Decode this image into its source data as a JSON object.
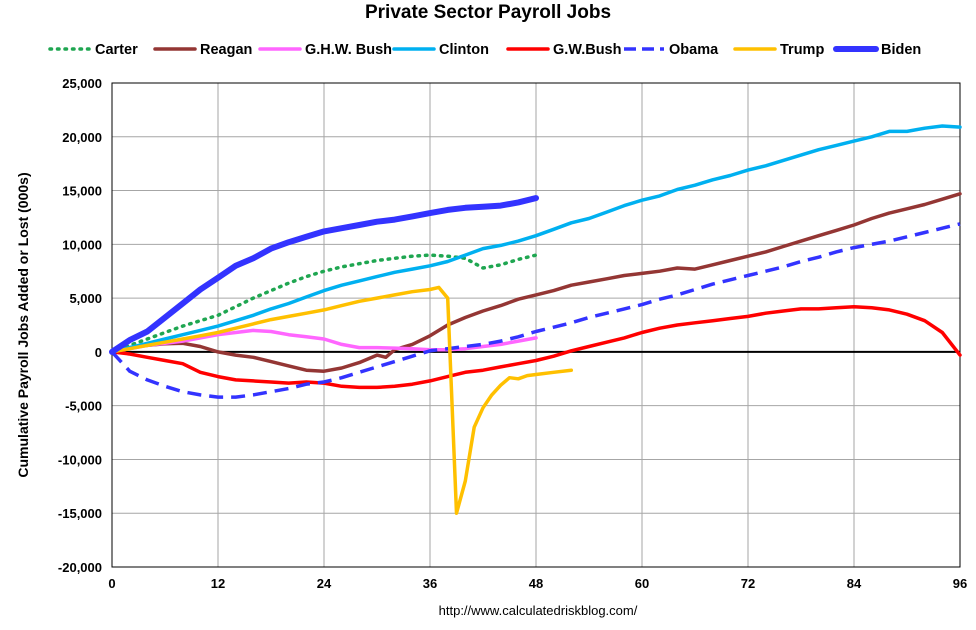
{
  "chart_data": {
    "type": "line",
    "title": "Private Sector Payroll Jobs",
    "xlabel": "",
    "ylabel": "Cumulative Payroll Jobs Added or  Lost (000s)",
    "source": "http://www.calculatedriskblog.com/",
    "xlim": [
      0,
      96
    ],
    "ylim": [
      -20000,
      25000
    ],
    "x_ticks": [
      0,
      12,
      24,
      36,
      48,
      60,
      72,
      84,
      96
    ],
    "y_ticks": [
      -20000,
      -15000,
      -10000,
      -5000,
      0,
      5000,
      10000,
      15000,
      20000,
      25000
    ],
    "y_tick_labels": [
      "-20,000",
      "-15,000",
      "-10,000",
      "-5,000",
      "0",
      "5,000",
      "10,000",
      "15,000",
      "20,000",
      "25,000"
    ],
    "grid": true,
    "legend_position": "top",
    "series": [
      {
        "name": "Carter",
        "color": "#1fa651",
        "style": "dotted",
        "points": [
          [
            0,
            0
          ],
          [
            2,
            600
          ],
          [
            4,
            1200
          ],
          [
            6,
            1800
          ],
          [
            8,
            2400
          ],
          [
            10,
            2900
          ],
          [
            12,
            3400
          ],
          [
            14,
            4200
          ],
          [
            16,
            5000
          ],
          [
            18,
            5700
          ],
          [
            20,
            6400
          ],
          [
            22,
            7000
          ],
          [
            24,
            7500
          ],
          [
            26,
            7900
          ],
          [
            28,
            8200
          ],
          [
            30,
            8500
          ],
          [
            32,
            8700
          ],
          [
            34,
            8900
          ],
          [
            36,
            9000
          ],
          [
            38,
            8900
          ],
          [
            40,
            8700
          ],
          [
            42,
            7800
          ],
          [
            44,
            8100
          ],
          [
            46,
            8600
          ],
          [
            48,
            9000
          ]
        ]
      },
      {
        "name": "Reagan",
        "color": "#943634",
        "style": "solid",
        "points": [
          [
            0,
            0
          ],
          [
            2,
            400
          ],
          [
            4,
            600
          ],
          [
            6,
            750
          ],
          [
            8,
            800
          ],
          [
            10,
            500
          ],
          [
            12,
            0
          ],
          [
            14,
            -300
          ],
          [
            16,
            -500
          ],
          [
            18,
            -900
          ],
          [
            20,
            -1300
          ],
          [
            22,
            -1700
          ],
          [
            24,
            -1800
          ],
          [
            26,
            -1500
          ],
          [
            28,
            -1000
          ],
          [
            30,
            -300
          ],
          [
            31,
            -500
          ],
          [
            32,
            200
          ],
          [
            34,
            700
          ],
          [
            36,
            1500
          ],
          [
            38,
            2500
          ],
          [
            40,
            3200
          ],
          [
            42,
            3800
          ],
          [
            44,
            4300
          ],
          [
            46,
            4900
          ],
          [
            48,
            5300
          ],
          [
            50,
            5700
          ],
          [
            52,
            6200
          ],
          [
            54,
            6500
          ],
          [
            56,
            6800
          ],
          [
            58,
            7100
          ],
          [
            60,
            7300
          ],
          [
            62,
            7500
          ],
          [
            64,
            7800
          ],
          [
            66,
            7700
          ],
          [
            68,
            8100
          ],
          [
            70,
            8500
          ],
          [
            72,
            8900
          ],
          [
            74,
            9300
          ],
          [
            76,
            9800
          ],
          [
            78,
            10300
          ],
          [
            80,
            10800
          ],
          [
            82,
            11300
          ],
          [
            84,
            11800
          ],
          [
            86,
            12400
          ],
          [
            88,
            12900
          ],
          [
            90,
            13300
          ],
          [
            92,
            13700
          ],
          [
            94,
            14200
          ],
          [
            96,
            14700
          ]
        ]
      },
      {
        "name": "G.H.W. Bush",
        "color": "#ff66ff",
        "style": "solid",
        "points": [
          [
            0,
            0
          ],
          [
            2,
            300
          ],
          [
            4,
            600
          ],
          [
            6,
            800
          ],
          [
            8,
            1000
          ],
          [
            10,
            1300
          ],
          [
            12,
            1600
          ],
          [
            14,
            1800
          ],
          [
            16,
            2000
          ],
          [
            18,
            1900
          ],
          [
            20,
            1600
          ],
          [
            22,
            1400
          ],
          [
            24,
            1200
          ],
          [
            26,
            700
          ],
          [
            28,
            400
          ],
          [
            30,
            400
          ],
          [
            32,
            350
          ],
          [
            34,
            300
          ],
          [
            36,
            200
          ],
          [
            38,
            200
          ],
          [
            40,
            300
          ],
          [
            42,
            500
          ],
          [
            44,
            700
          ],
          [
            46,
            1000
          ],
          [
            48,
            1300
          ]
        ]
      },
      {
        "name": "Clinton",
        "color": "#00b0f0",
        "style": "solid",
        "points": [
          [
            0,
            0
          ],
          [
            2,
            400
          ],
          [
            4,
            800
          ],
          [
            6,
            1200
          ],
          [
            8,
            1600
          ],
          [
            10,
            2000
          ],
          [
            12,
            2400
          ],
          [
            14,
            2900
          ],
          [
            16,
            3400
          ],
          [
            18,
            4000
          ],
          [
            20,
            4500
          ],
          [
            22,
            5100
          ],
          [
            24,
            5700
          ],
          [
            26,
            6200
          ],
          [
            28,
            6600
          ],
          [
            30,
            7000
          ],
          [
            32,
            7400
          ],
          [
            34,
            7700
          ],
          [
            36,
            8000
          ],
          [
            38,
            8400
          ],
          [
            40,
            9000
          ],
          [
            42,
            9600
          ],
          [
            44,
            9900
          ],
          [
            46,
            10300
          ],
          [
            48,
            10800
          ],
          [
            50,
            11400
          ],
          [
            52,
            12000
          ],
          [
            54,
            12400
          ],
          [
            56,
            13000
          ],
          [
            58,
            13600
          ],
          [
            60,
            14100
          ],
          [
            62,
            14500
          ],
          [
            64,
            15100
          ],
          [
            66,
            15500
          ],
          [
            68,
            16000
          ],
          [
            70,
            16400
          ],
          [
            72,
            16900
          ],
          [
            74,
            17300
          ],
          [
            76,
            17800
          ],
          [
            78,
            18300
          ],
          [
            80,
            18800
          ],
          [
            82,
            19200
          ],
          [
            84,
            19600
          ],
          [
            86,
            20000
          ],
          [
            88,
            20500
          ],
          [
            90,
            20500
          ],
          [
            92,
            20800
          ],
          [
            94,
            21000
          ],
          [
            96,
            20900
          ]
        ]
      },
      {
        "name": "G.W.Bush",
        "color": "#ff0000",
        "style": "solid",
        "points": [
          [
            0,
            0
          ],
          [
            2,
            -200
          ],
          [
            4,
            -500
          ],
          [
            6,
            -800
          ],
          [
            8,
            -1100
          ],
          [
            10,
            -1900
          ],
          [
            12,
            -2300
          ],
          [
            14,
            -2600
          ],
          [
            16,
            -2700
          ],
          [
            18,
            -2800
          ],
          [
            20,
            -2900
          ],
          [
            22,
            -2800
          ],
          [
            24,
            -2900
          ],
          [
            26,
            -3200
          ],
          [
            28,
            -3300
          ],
          [
            30,
            -3300
          ],
          [
            32,
            -3200
          ],
          [
            34,
            -3000
          ],
          [
            36,
            -2700
          ],
          [
            38,
            -2300
          ],
          [
            40,
            -1900
          ],
          [
            42,
            -1700
          ],
          [
            44,
            -1400
          ],
          [
            46,
            -1100
          ],
          [
            48,
            -800
          ],
          [
            50,
            -400
          ],
          [
            52,
            100
          ],
          [
            54,
            500
          ],
          [
            56,
            900
          ],
          [
            58,
            1300
          ],
          [
            60,
            1800
          ],
          [
            62,
            2200
          ],
          [
            64,
            2500
          ],
          [
            66,
            2700
          ],
          [
            68,
            2900
          ],
          [
            70,
            3100
          ],
          [
            72,
            3300
          ],
          [
            74,
            3600
          ],
          [
            76,
            3800
          ],
          [
            78,
            4000
          ],
          [
            80,
            4000
          ],
          [
            82,
            4100
          ],
          [
            84,
            4200
          ],
          [
            86,
            4100
          ],
          [
            88,
            3900
          ],
          [
            90,
            3500
          ],
          [
            92,
            2900
          ],
          [
            94,
            1800
          ],
          [
            96,
            -300
          ]
        ]
      },
      {
        "name": "Obama",
        "color": "#3333ff",
        "style": "dashed",
        "points": [
          [
            0,
            0
          ],
          [
            2,
            -1800
          ],
          [
            4,
            -2600
          ],
          [
            6,
            -3200
          ],
          [
            8,
            -3700
          ],
          [
            10,
            -4000
          ],
          [
            12,
            -4200
          ],
          [
            14,
            -4200
          ],
          [
            16,
            -4000
          ],
          [
            18,
            -3700
          ],
          [
            20,
            -3400
          ],
          [
            22,
            -3000
          ],
          [
            24,
            -2800
          ],
          [
            26,
            -2400
          ],
          [
            28,
            -1900
          ],
          [
            30,
            -1400
          ],
          [
            32,
            -900
          ],
          [
            34,
            -400
          ],
          [
            36,
            100
          ],
          [
            38,
            300
          ],
          [
            40,
            500
          ],
          [
            42,
            700
          ],
          [
            44,
            1000
          ],
          [
            46,
            1400
          ],
          [
            48,
            1900
          ],
          [
            50,
            2300
          ],
          [
            52,
            2700
          ],
          [
            54,
            3200
          ],
          [
            56,
            3600
          ],
          [
            58,
            4000
          ],
          [
            60,
            4400
          ],
          [
            62,
            4900
          ],
          [
            64,
            5300
          ],
          [
            66,
            5800
          ],
          [
            68,
            6300
          ],
          [
            70,
            6700
          ],
          [
            72,
            7100
          ],
          [
            74,
            7500
          ],
          [
            76,
            7900
          ],
          [
            78,
            8400
          ],
          [
            80,
            8800
          ],
          [
            82,
            9300
          ],
          [
            84,
            9700
          ],
          [
            86,
            10000
          ],
          [
            88,
            10300
          ],
          [
            90,
            10700
          ],
          [
            92,
            11100
          ],
          [
            94,
            11500
          ],
          [
            96,
            11900
          ]
        ]
      },
      {
        "name": "Trump",
        "color": "#ffc000",
        "style": "solid",
        "points": [
          [
            0,
            0
          ],
          [
            2,
            300
          ],
          [
            4,
            600
          ],
          [
            6,
            900
          ],
          [
            8,
            1200
          ],
          [
            10,
            1500
          ],
          [
            12,
            1800
          ],
          [
            14,
            2200
          ],
          [
            16,
            2600
          ],
          [
            18,
            3000
          ],
          [
            20,
            3300
          ],
          [
            22,
            3600
          ],
          [
            24,
            3900
          ],
          [
            26,
            4300
          ],
          [
            28,
            4700
          ],
          [
            30,
            5000
          ],
          [
            32,
            5300
          ],
          [
            34,
            5600
          ],
          [
            36,
            5800
          ],
          [
            37,
            6000
          ],
          [
            38,
            5000
          ],
          [
            39,
            -15000
          ],
          [
            40,
            -12000
          ],
          [
            41,
            -7000
          ],
          [
            42,
            -5200
          ],
          [
            43,
            -4000
          ],
          [
            44,
            -3100
          ],
          [
            45,
            -2400
          ],
          [
            46,
            -2500
          ],
          [
            47,
            -2200
          ],
          [
            48,
            -2100
          ],
          [
            50,
            -1900
          ],
          [
            52,
            -1700
          ]
        ]
      },
      {
        "name": "Biden",
        "color": "#3333ff",
        "style": "thick",
        "points": [
          [
            0,
            0
          ],
          [
            2,
            1100
          ],
          [
            4,
            1900
          ],
          [
            6,
            3200
          ],
          [
            8,
            4500
          ],
          [
            10,
            5800
          ],
          [
            12,
            6900
          ],
          [
            14,
            8000
          ],
          [
            16,
            8700
          ],
          [
            18,
            9600
          ],
          [
            20,
            10200
          ],
          [
            22,
            10700
          ],
          [
            24,
            11200
          ],
          [
            26,
            11500
          ],
          [
            28,
            11800
          ],
          [
            30,
            12100
          ],
          [
            32,
            12300
          ],
          [
            34,
            12600
          ],
          [
            36,
            12900
          ],
          [
            38,
            13200
          ],
          [
            40,
            13400
          ],
          [
            42,
            13500
          ],
          [
            44,
            13600
          ],
          [
            46,
            13900
          ],
          [
            48,
            14300
          ]
        ]
      }
    ]
  }
}
